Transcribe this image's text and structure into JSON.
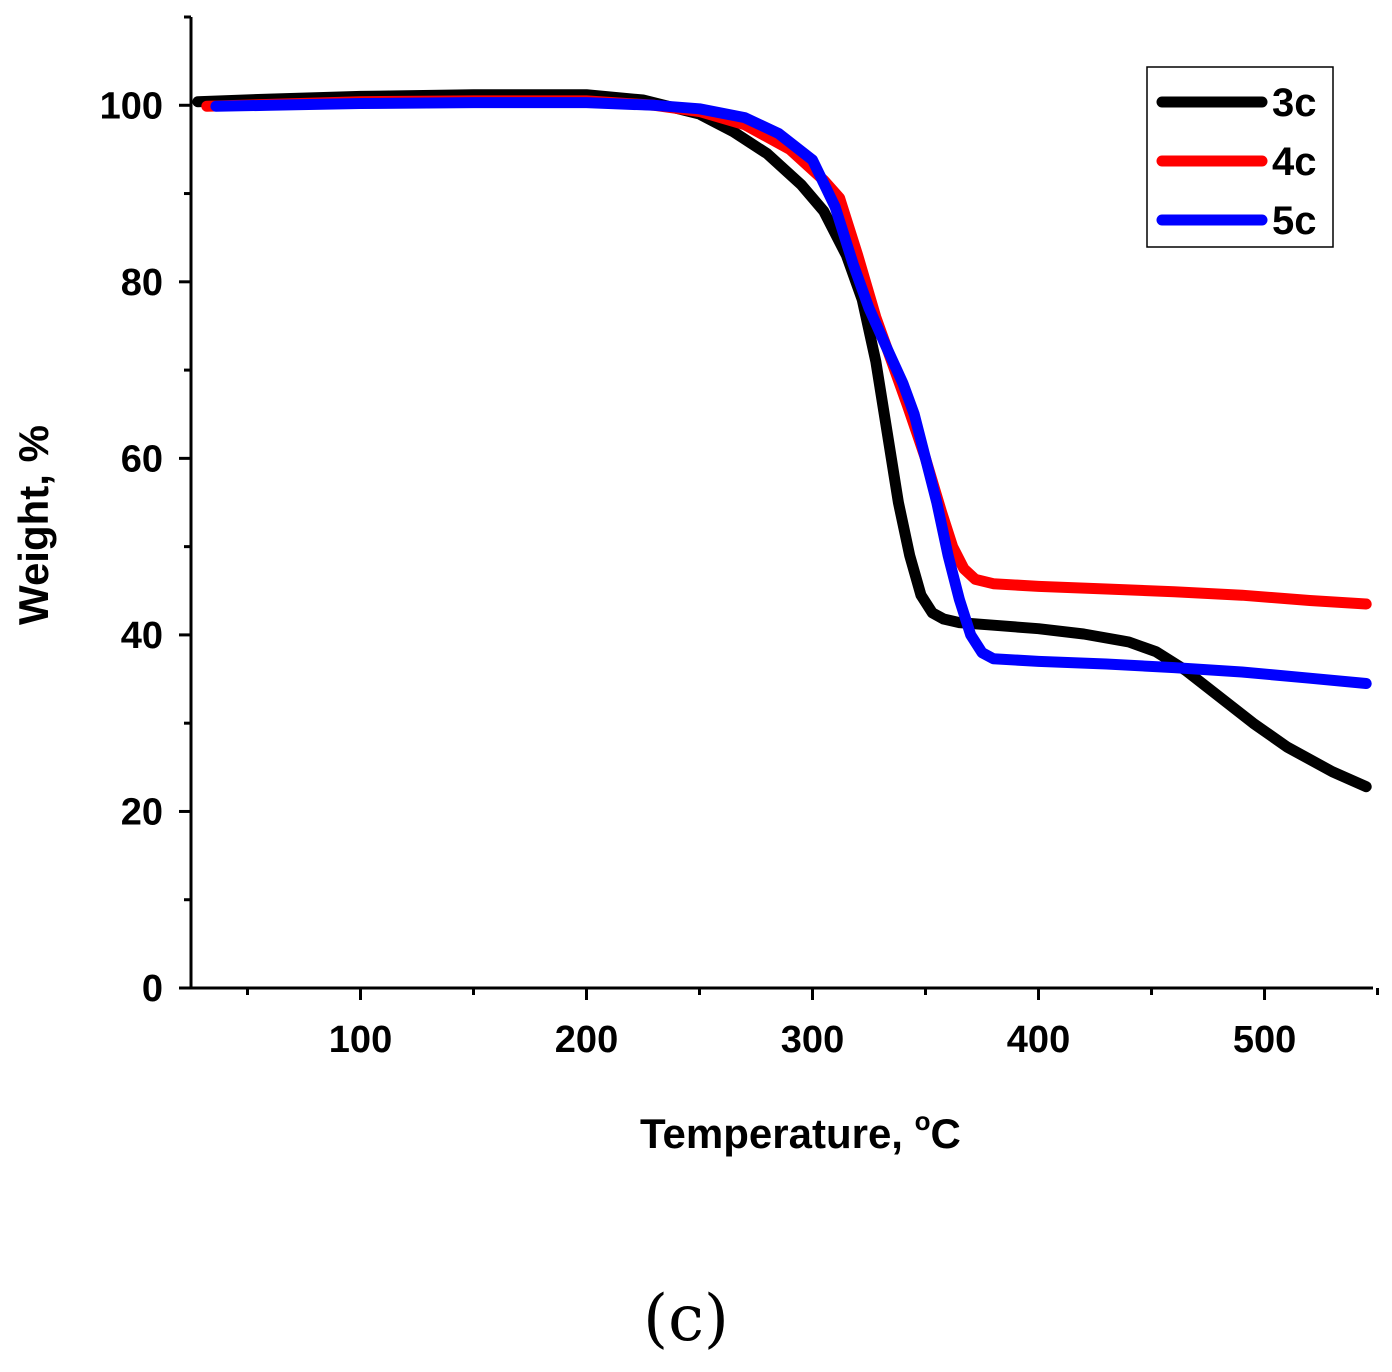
{
  "panel_label": "(c)",
  "chart_data": {
    "type": "line",
    "title": "",
    "xlabel": "Temperature, °C",
    "xlabel_main": "Temperature, ",
    "xlabel_degree": "o",
    "xlabel_unit": "C",
    "ylabel": "Weight, %",
    "xlim": [
      25,
      548
    ],
    "ylim": [
      0,
      110
    ],
    "x_ticks": [
      100,
      200,
      300,
      400,
      500
    ],
    "x_minor_ticks": [
      50,
      150,
      250,
      350,
      450,
      550
    ],
    "y_ticks": [
      0,
      20,
      40,
      60,
      80,
      100
    ],
    "y_minor_ticks": [
      10,
      30,
      50,
      70,
      90,
      110
    ],
    "grid": false,
    "legend_position": "top-right",
    "series": [
      {
        "name": "3c",
        "color": "#000000",
        "x": [
          28,
          60,
          100,
          150,
          200,
          225,
          250,
          265,
          280,
          295,
          305,
          315,
          322,
          328,
          333,
          338,
          343,
          348,
          353,
          358,
          365,
          380,
          400,
          420,
          440,
          452,
          465,
          480,
          495,
          510,
          530,
          545
        ],
        "y": [
          100.4,
          100.7,
          101,
          101.2,
          101.2,
          100.6,
          99,
          97,
          94.5,
          91,
          88,
          83,
          78,
          71,
          63,
          55,
          49,
          44.5,
          42.5,
          41.8,
          41.4,
          41.1,
          40.7,
          40.1,
          39.2,
          38.1,
          36,
          33,
          30,
          27.3,
          24.5,
          22.8
        ]
      },
      {
        "name": "4c",
        "color": "#ff0000",
        "x": [
          32,
          60,
          100,
          150,
          200,
          230,
          250,
          270,
          290,
          305,
          312,
          320,
          328,
          335,
          342,
          350,
          357,
          362,
          367,
          372,
          380,
          400,
          430,
          460,
          490,
          520,
          545
        ],
        "y": [
          99.9,
          100.1,
          100.4,
          100.5,
          100.5,
          100,
          99.3,
          97.8,
          95,
          91.5,
          89.5,
          83,
          76,
          71,
          66,
          60,
          54,
          50,
          47.5,
          46.3,
          45.8,
          45.5,
          45.2,
          44.9,
          44.5,
          43.9,
          43.5
        ]
      },
      {
        "name": "5c",
        "color": "#0000ff",
        "x": [
          36,
          60,
          100,
          150,
          200,
          230,
          250,
          270,
          285,
          300,
          310,
          318,
          325,
          332,
          340,
          345,
          350,
          355,
          360,
          365,
          370,
          375,
          380,
          400,
          430,
          460,
          490,
          520,
          545
        ],
        "y": [
          99.9,
          100,
          100.2,
          100.3,
          100.3,
          100,
          99.6,
          98.6,
          96.8,
          93.8,
          88.5,
          82,
          77,
          73,
          68.5,
          65,
          60,
          55,
          49,
          44,
          40,
          38,
          37.3,
          37,
          36.7,
          36.3,
          35.8,
          35.1,
          34.5
        ]
      }
    ]
  }
}
